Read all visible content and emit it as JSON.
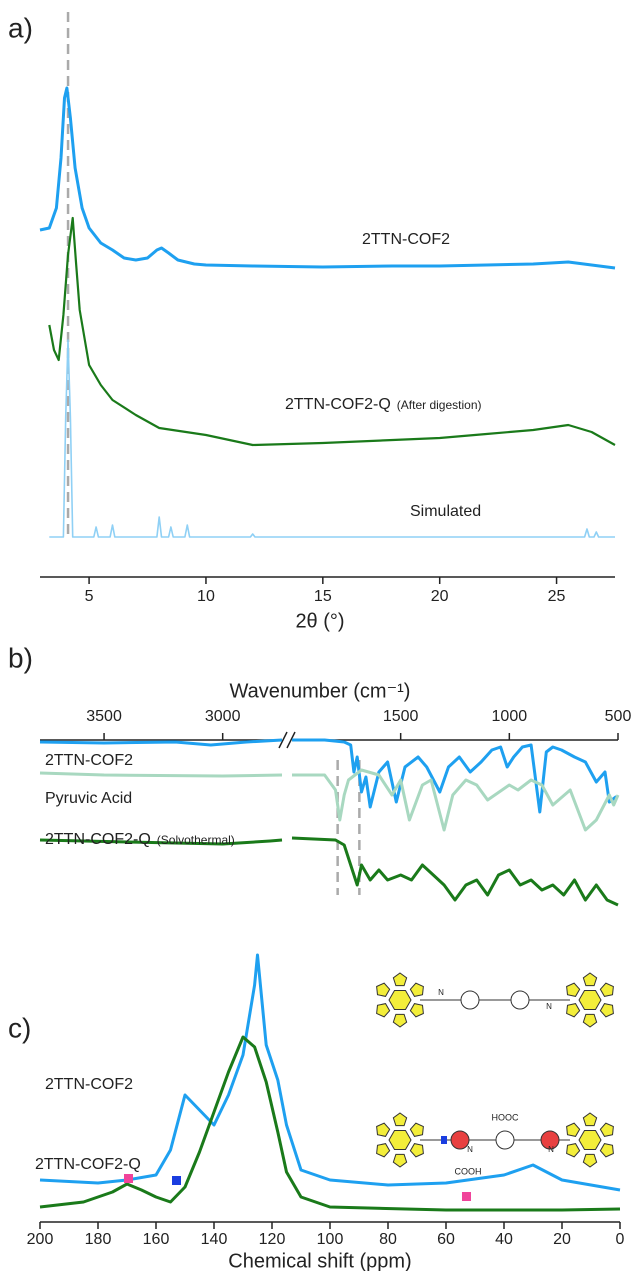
{
  "chart_data": [
    {
      "type": "line",
      "panel_label": "a)",
      "x_label": "2θ (°)",
      "xlim": [
        2.9,
        27.5
      ],
      "xticks": [
        5,
        10,
        15,
        20,
        25
      ],
      "reference_lines": [
        4.1
      ],
      "series": [
        {
          "name": "2TTN-COF2",
          "color": "#1ea0f0",
          "x": [
            2.9,
            3.3,
            3.6,
            3.8,
            3.95,
            4.05,
            4.2,
            4.4,
            4.7,
            5.0,
            5.5,
            6.0,
            6.5,
            7.0,
            7.5,
            7.9,
            8.1,
            8.4,
            8.8,
            9.5,
            10,
            12,
            15,
            18,
            20,
            22,
            24,
            25.5,
            26.5,
            27.5
          ],
          "values": [
            38,
            40,
            60,
            110,
            170,
            180,
            150,
            100,
            60,
            40,
            25,
            18,
            10,
            8,
            10,
            18,
            20,
            15,
            8,
            4,
            3,
            2,
            1,
            2,
            2,
            3,
            4,
            6,
            3,
            0
          ]
        },
        {
          "name": "2TTN-COF2-Q",
          "name_suffix": "(After digestion)",
          "color": "#1a7a1a",
          "x": [
            3.3,
            3.5,
            3.7,
            3.9,
            4.1,
            4.3,
            4.45,
            4.6,
            5.0,
            5.5,
            6.0,
            7.0,
            8.0,
            10,
            12,
            15,
            18,
            20,
            22,
            24,
            25.5,
            26.5,
            27.5
          ],
          "values": [
            120,
            95,
            85,
            130,
            190,
            227,
            180,
            135,
            80,
            60,
            45,
            30,
            17,
            10,
            0,
            2,
            5,
            7,
            11,
            15,
            20,
            13,
            0
          ]
        },
        {
          "name": "Simulated",
          "color": "#8fd0f5",
          "x": [
            3.3,
            3.9,
            4.0,
            4.1,
            4.2,
            4.3,
            5.2,
            5.3,
            5.4,
            5.9,
            6.0,
            6.1,
            7.9,
            8.0,
            8.1,
            8.4,
            8.5,
            8.6,
            9.1,
            9.2,
            9.3,
            11.9,
            12.0,
            12.1,
            26.2,
            26.3,
            26.4,
            26.6,
            26.7,
            26.8,
            27.5
          ],
          "values": [
            0,
            0,
            120,
            197,
            120,
            0,
            0,
            10,
            0,
            0,
            12,
            0,
            0,
            20,
            0,
            0,
            10,
            0,
            0,
            12,
            0,
            0,
            3,
            0,
            0,
            8,
            0,
            0,
            5,
            0,
            0
          ]
        }
      ]
    },
    {
      "type": "line",
      "panel_label": "b)",
      "x_label": "Wavenumber (cm⁻¹)",
      "x_segments": [
        [
          3770,
          2750
        ],
        [
          2000,
          500
        ]
      ],
      "xticks": [
        3500,
        3000,
        1500,
        1000,
        500
      ],
      "reference_lines": [
        1790,
        1690
      ],
      "series": [
        {
          "name": "2TTN-COF2",
          "color": "#1ea0f0",
          "x": [
            3770,
            3500,
            3200,
            3050,
            3000,
            2900,
            2750,
            null,
            2000,
            1850,
            1760,
            1730,
            1715,
            1700,
            1680,
            1660,
            1640,
            1600,
            1560,
            1520,
            1480,
            1420,
            1380,
            1320,
            1280,
            1230,
            1180,
            1130,
            1080,
            1040,
            1010,
            980,
            940,
            900,
            860,
            830,
            800,
            760,
            700,
            650,
            600,
            560,
            540,
            510,
            500
          ],
          "values": [
            0,
            -1,
            0,
            -3,
            -2,
            0,
            2,
            null,
            2,
            2,
            0,
            -3,
            -30,
            -15,
            -50,
            -35,
            -65,
            -30,
            -20,
            -60,
            -25,
            -15,
            -25,
            -50,
            -25,
            -15,
            -30,
            -20,
            -8,
            -5,
            -25,
            -15,
            -5,
            -3,
            -70,
            -10,
            -5,
            -8,
            -15,
            -20,
            -40,
            -30,
            -60,
            -55,
            -55
          ]
        },
        {
          "name": "Pyruvic Acid",
          "color": "#a8d8c0",
          "x": [
            3770,
            3500,
            3000,
            2750,
            null,
            2000,
            1850,
            1800,
            1780,
            1760,
            1740,
            1680,
            1600,
            1540,
            1500,
            1460,
            1400,
            1360,
            1300,
            1260,
            1200,
            1150,
            1100,
            1000,
            960,
            900,
            850,
            800,
            720,
            650,
            600,
            540,
            520,
            500
          ],
          "values": [
            2,
            0,
            -1,
            0,
            null,
            0,
            0,
            -15,
            -45,
            -20,
            -5,
            5,
            0,
            -20,
            -5,
            -45,
            -10,
            -5,
            -55,
            -20,
            -5,
            -10,
            -25,
            -10,
            -15,
            -5,
            -10,
            -30,
            -15,
            -55,
            -45,
            -20,
            -30,
            -20
          ]
        },
        {
          "name": "2TTN-COF2-Q",
          "name_suffix": "(Solvothermal)",
          "color": "#1a7a1a",
          "x": [
            3770,
            3400,
            3000,
            2800,
            2750,
            null,
            2000,
            1800,
            1760,
            1730,
            1700,
            1680,
            1640,
            1600,
            1560,
            1500,
            1450,
            1400,
            1350,
            1300,
            1250,
            1200,
            1150,
            1100,
            1050,
            1000,
            950,
            900,
            850,
            800,
            750,
            700,
            650,
            600,
            550,
            500
          ],
          "values": [
            0,
            -2,
            -4,
            -1,
            0,
            null,
            2,
            0,
            -5,
            -25,
            -45,
            -25,
            -40,
            -30,
            -40,
            -35,
            -40,
            -25,
            -35,
            -45,
            -60,
            -45,
            -40,
            -55,
            -35,
            -30,
            -45,
            -40,
            -50,
            -45,
            -55,
            -40,
            -60,
            -45,
            -60,
            -65
          ]
        }
      ]
    },
    {
      "type": "line",
      "panel_label": "c)",
      "x_label": "Chemical shift (ppm)",
      "xlim": [
        200,
        0
      ],
      "xticks": [
        200,
        180,
        160,
        140,
        120,
        100,
        80,
        60,
        40,
        20,
        0
      ],
      "series": [
        {
          "name": "2TTN-COF2",
          "color": "#1ea0f0",
          "x": [
            200,
            180,
            170,
            160,
            155,
            150,
            145,
            140,
            135,
            130,
            126,
            125,
            122,
            118,
            115,
            110,
            100,
            80,
            60,
            40,
            30,
            20,
            10,
            0
          ],
          "values": [
            15,
            12,
            15,
            20,
            45,
            100,
            85,
            70,
            100,
            140,
            210,
            240,
            150,
            115,
            70,
            25,
            15,
            10,
            12,
            20,
            30,
            15,
            10,
            5
          ]
        },
        {
          "name": "2TTN-COF2-Q",
          "color": "#1a7a1a",
          "x": [
            200,
            185,
            175,
            170,
            165,
            160,
            155,
            150,
            145,
            140,
            135,
            130,
            126,
            122,
            118,
            115,
            110,
            100,
            60,
            20,
            0
          ],
          "values": [
            5,
            10,
            20,
            28,
            22,
            15,
            10,
            25,
            60,
            100,
            140,
            175,
            165,
            130,
            80,
            40,
            15,
            5,
            2,
            2,
            3
          ]
        }
      ],
      "structure_labels": [
        "N",
        "N",
        "N",
        "N",
        "HOOC",
        "COOH"
      ]
    }
  ]
}
